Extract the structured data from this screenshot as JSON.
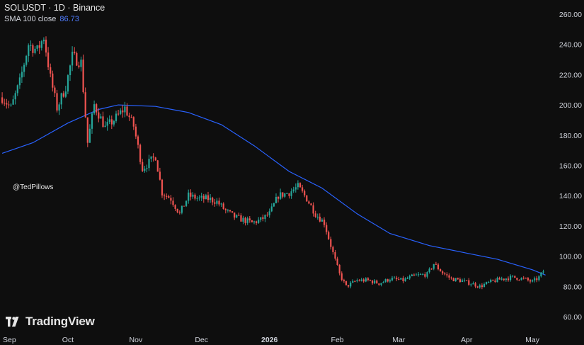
{
  "header": {
    "title": "SOLUSDT · 1D · Binance",
    "indicator_label": "SMA 100 close",
    "indicator_value": "86.73"
  },
  "watermark": "@TedPillows",
  "brand": {
    "name": "TradingView",
    "icon": "tradingview-logo-icon"
  },
  "colors": {
    "background": "#0e0e0e",
    "up": "#26a69a",
    "down": "#ef5350",
    "sma": "#2962ff",
    "axis_text": "#d1d4dc"
  },
  "chart_data": {
    "type": "candlestick",
    "title": "SOLUSDT · 1D · Binance",
    "xlabel": "",
    "ylabel": "",
    "ylim": [
      50,
      270
    ],
    "y_ticks": [
      "260.00",
      "240.00",
      "220.00",
      "200.00",
      "180.00",
      "160.00",
      "140.00",
      "120.00",
      "100.00",
      "80.00",
      "60.00"
    ],
    "x_ticks": [
      "Sep",
      "Oct",
      "Nov",
      "Dec",
      "2026",
      "Feb",
      "Mar",
      "Apr",
      "May"
    ],
    "grid": false,
    "price_path": [
      [
        "2025-09-01",
        205
      ],
      [
        "2025-09-05",
        198
      ],
      [
        "2025-09-09",
        215
      ],
      [
        "2025-09-13",
        240
      ],
      [
        "2025-09-17",
        236
      ],
      [
        "2025-09-20",
        245
      ],
      [
        "2025-09-23",
        218
      ],
      [
        "2025-09-26",
        198
      ],
      [
        "2025-09-30",
        212
      ],
      [
        "2025-10-03",
        232
      ],
      [
        "2025-10-07",
        228
      ],
      [
        "2025-10-10",
        175
      ],
      [
        "2025-10-13",
        200
      ],
      [
        "2025-10-18",
        185
      ],
      [
        "2025-10-22",
        190
      ],
      [
        "2025-10-27",
        198
      ],
      [
        "2025-10-31",
        186
      ],
      [
        "2025-11-04",
        158
      ],
      [
        "2025-11-07",
        162
      ],
      [
        "2025-11-10",
        166
      ],
      [
        "2025-11-13",
        142
      ],
      [
        "2025-11-17",
        138
      ],
      [
        "2025-11-21",
        128
      ],
      [
        "2025-11-25",
        140
      ],
      [
        "2025-11-30",
        138
      ],
      [
        "2025-12-04",
        138
      ],
      [
        "2025-12-08",
        136
      ],
      [
        "2025-12-12",
        130
      ],
      [
        "2025-12-16",
        126
      ],
      [
        "2025-12-20",
        124
      ],
      [
        "2025-12-24",
        122
      ],
      [
        "2025-12-28",
        124
      ],
      [
        "2026-01-01",
        128
      ],
      [
        "2026-01-05",
        140
      ],
      [
        "2026-01-10",
        142
      ],
      [
        "2026-01-14",
        146
      ],
      [
        "2026-01-18",
        138
      ],
      [
        "2026-01-22",
        128
      ],
      [
        "2026-01-26",
        122
      ],
      [
        "2026-01-30",
        102
      ],
      [
        "2026-02-02",
        88
      ],
      [
        "2026-02-05",
        80
      ],
      [
        "2026-02-10",
        84
      ],
      [
        "2026-02-15",
        84
      ],
      [
        "2026-02-20",
        82
      ],
      [
        "2026-02-25",
        85
      ],
      [
        "2026-03-03",
        84
      ],
      [
        "2026-03-08",
        87
      ],
      [
        "2026-03-14",
        88
      ],
      [
        "2026-03-17",
        95
      ],
      [
        "2026-03-21",
        89
      ],
      [
        "2026-03-25",
        85
      ],
      [
        "2026-03-29",
        84
      ],
      [
        "2026-04-03",
        82
      ],
      [
        "2026-04-07",
        80
      ],
      [
        "2026-04-12",
        83
      ],
      [
        "2026-04-17",
        85
      ],
      [
        "2026-04-22",
        86
      ],
      [
        "2026-04-27",
        85
      ],
      [
        "2026-05-01",
        83
      ],
      [
        "2026-05-04",
        86
      ],
      [
        "2026-05-06",
        90
      ]
    ],
    "series": [
      {
        "name": "SMA 100 close",
        "points": [
          [
            "2025-09-01",
            168
          ],
          [
            "2025-09-15",
            175
          ],
          [
            "2025-10-01",
            188
          ],
          [
            "2025-10-15",
            197
          ],
          [
            "2025-10-24",
            200
          ],
          [
            "2025-11-10",
            199
          ],
          [
            "2025-11-25",
            195
          ],
          [
            "2025-12-10",
            187
          ],
          [
            "2025-12-25",
            173
          ],
          [
            "2026-01-10",
            156
          ],
          [
            "2026-01-25",
            145
          ],
          [
            "2026-02-10",
            128
          ],
          [
            "2026-02-25",
            115
          ],
          [
            "2026-03-15",
            107
          ],
          [
            "2026-04-01",
            102
          ],
          [
            "2026-04-15",
            98
          ],
          [
            "2026-05-01",
            91
          ],
          [
            "2026-05-07",
            87.5
          ]
        ]
      }
    ]
  }
}
